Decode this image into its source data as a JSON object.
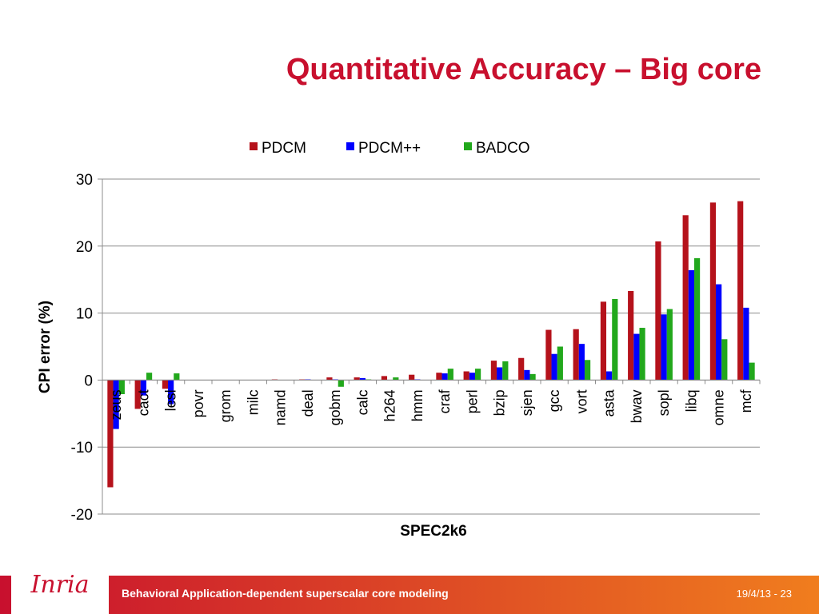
{
  "slide": {
    "title": "Quantitative Accuracy – Big core",
    "footer_caption": "Behavioral Application-dependent superscalar core modeling",
    "footer_date": "19/4/13 - 23",
    "logo_text": "Inria"
  },
  "colors": {
    "title": "#c8102e",
    "footer_gradient_start": "#c8102e",
    "footer_gradient_end": "#f07d1e",
    "PDCM": "#b5121b",
    "PDCM++": "#0000ff",
    "BADCO": "#22a81c"
  },
  "chart_data": {
    "type": "bar",
    "xlabel": "SPEC2k6",
    "ylabel": "CPI error (%)",
    "ylim": [
      -20,
      30
    ],
    "yticks": [
      -20,
      -10,
      0,
      10,
      20,
      30
    ],
    "grid": true,
    "legend_position": "top",
    "categories": [
      "zeus",
      "cact",
      "lesl",
      "povr",
      "grom",
      "milc",
      "namd",
      "deal",
      "gobm",
      "calc",
      "h264",
      "hmm",
      "craf",
      "perl",
      "bzip",
      "sjen",
      "gcc",
      "vort",
      "asta",
      "bwav",
      "sopl",
      "libq",
      "omne",
      "mcf"
    ],
    "series": [
      {
        "name": "PDCM",
        "values": [
          -16.0,
          -4.3,
          -1.3,
          0.0,
          0.0,
          0.0,
          0.1,
          0.1,
          0.4,
          0.4,
          0.6,
          0.8,
          1.1,
          1.3,
          2.9,
          3.3,
          7.5,
          7.6,
          11.7,
          13.3,
          20.7,
          24.6,
          26.5,
          26.7
        ]
      },
      {
        "name": "PDCM++",
        "values": [
          -7.3,
          -2.3,
          -3.6,
          0.0,
          0.0,
          0.0,
          0.0,
          0.1,
          0.1,
          0.3,
          0.0,
          0.1,
          1.0,
          1.1,
          1.9,
          1.5,
          3.9,
          5.4,
          1.3,
          6.9,
          9.8,
          16.4,
          14.3,
          10.8
        ]
      },
      {
        "name": "BADCO",
        "values": [
          -2.1,
          1.1,
          1.0,
          0.0,
          0.0,
          0.0,
          0.0,
          0.0,
          -1.0,
          0.1,
          0.4,
          0.0,
          1.7,
          1.7,
          2.8,
          0.9,
          5.0,
          3.0,
          12.1,
          7.8,
          10.6,
          18.2,
          6.1,
          2.6
        ]
      }
    ]
  }
}
